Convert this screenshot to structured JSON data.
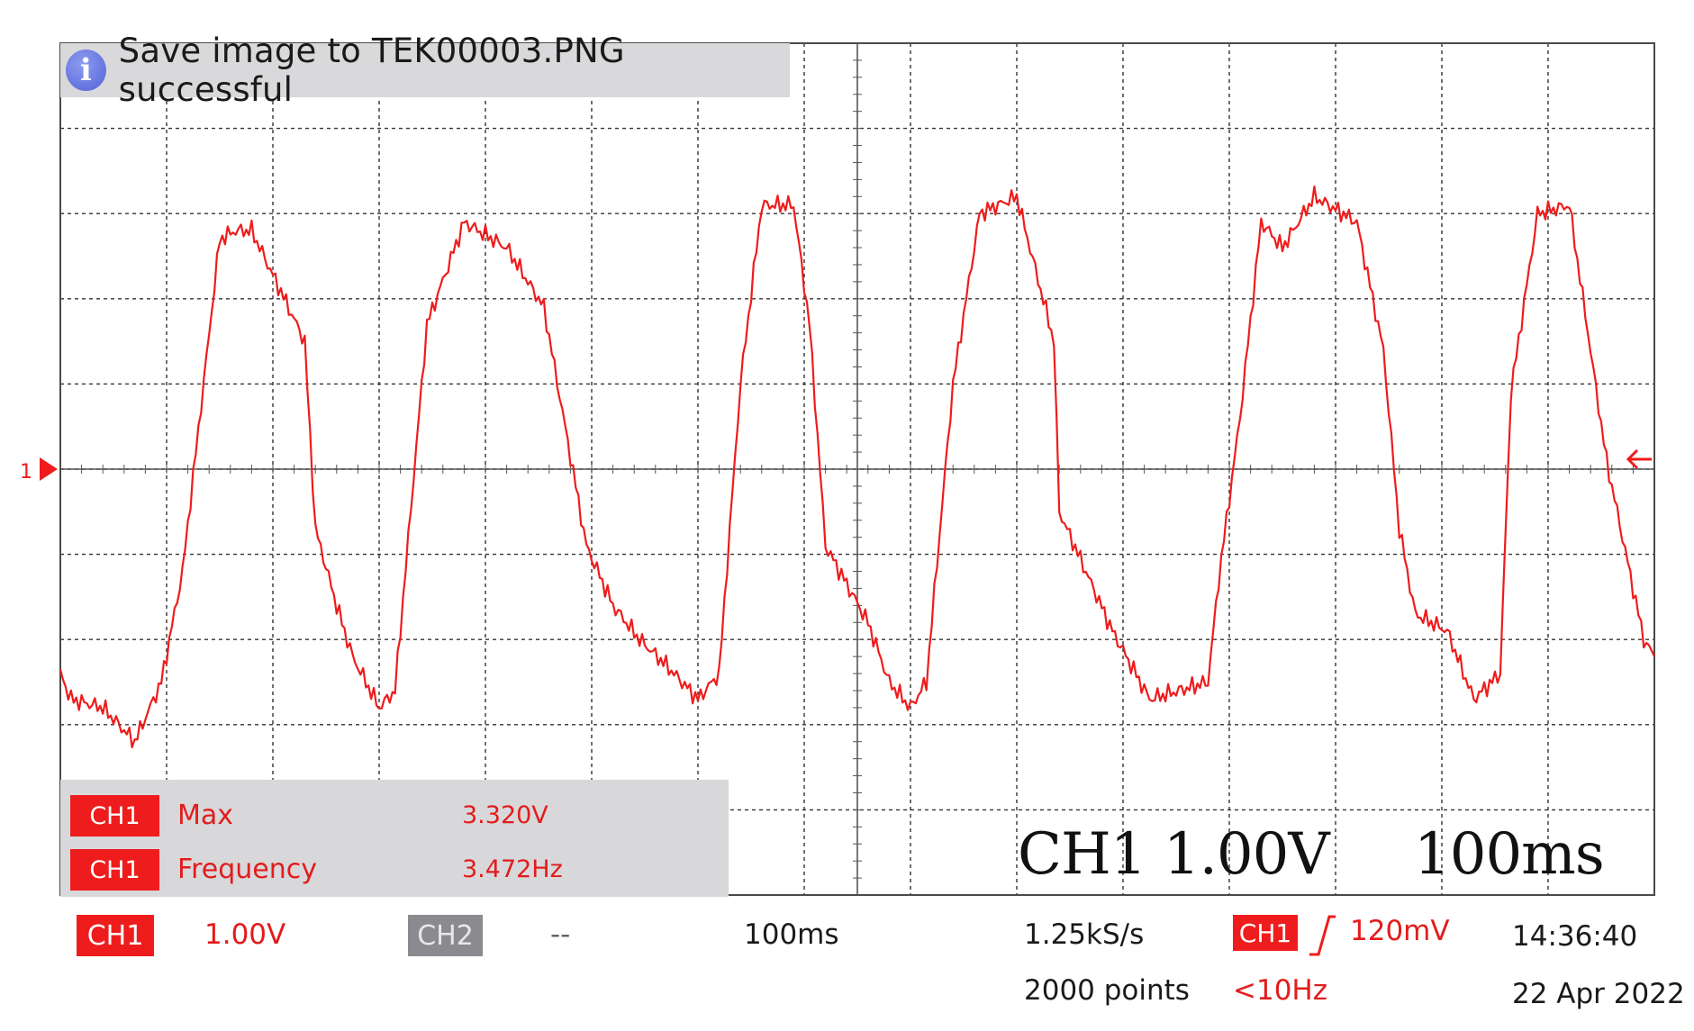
{
  "notice": {
    "icon": "info-icon",
    "text": "Save image to TEK00003.PNG successful"
  },
  "channel_marker": {
    "label": "1"
  },
  "measurements": [
    {
      "channel": "CH1",
      "label": "Max",
      "value": "3.320V"
    },
    {
      "channel": "CH1",
      "label": "Frequency",
      "value": "3.472Hz"
    }
  ],
  "overlay_scale": {
    "channel_text": "CH1  1.00V",
    "time_text": "100ms"
  },
  "status_bar": {
    "ch1_label": "CH1",
    "ch1_scale": "1.00V",
    "ch2_label": "CH2",
    "ch2_scale": "--",
    "timebase": "100ms",
    "sample_rate": "1.25kS/s",
    "record_length": "2000 points",
    "trigger_channel": "CH1",
    "trigger_level": "120mV",
    "trigger_freq": "<10Hz",
    "time": "14:36:40",
    "date": "22 Apr 2022"
  },
  "colors": {
    "trace": "#ee1c1c",
    "grid": "#333333",
    "badge": "#ee1c1c",
    "panel": "#d8d8da"
  },
  "waveform": {
    "volts_per_div": 1.0,
    "ms_per_div": 100,
    "x_divisions": 15,
    "y_divisions": 10,
    "ground_level_volts": 0,
    "time_ms": [
      0,
      10,
      40,
      70,
      95,
      115,
      150,
      165,
      180,
      230,
      240,
      260,
      275,
      300,
      315,
      345,
      380,
      420,
      455,
      495,
      520,
      545,
      570,
      600,
      620,
      640,
      660,
      690,
      705,
      720,
      760,
      780,
      800,
      815,
      840,
      865,
      900,
      935,
      940,
      990,
      1025,
      1080,
      1090,
      1110,
      1130,
      1150,
      1180,
      1220,
      1245,
      1260,
      1275,
      1305,
      1330,
      1355,
      1365,
      1390,
      1420,
      1455,
      1490,
      1500
    ],
    "volts": [
      -2.4,
      -2.7,
      -2.8,
      -3.2,
      -2.5,
      -1.2,
      2.7,
      2.8,
      2.8,
      1.5,
      -0.7,
      -1.6,
      -2.2,
      -2.8,
      -2.6,
      1.7,
      2.9,
      2.6,
      1.9,
      -0.9,
      -1.6,
      -2.0,
      -2.3,
      -2.7,
      -2.4,
      1.0,
      3.1,
      3.1,
      1.7,
      -0.9,
      -1.8,
      -2.5,
      -2.8,
      -2.5,
      1.0,
      3.0,
      3.2,
      1.5,
      -0.5,
      -1.9,
      -2.7,
      -2.5,
      -1.3,
      0.6,
      2.9,
      2.6,
      3.2,
      2.9,
      1.4,
      -0.7,
      -1.7,
      -1.9,
      -2.7,
      -2.4,
      0.9,
      3.0,
      3.1,
      0.1,
      -2.0,
      -2.2
    ]
  }
}
